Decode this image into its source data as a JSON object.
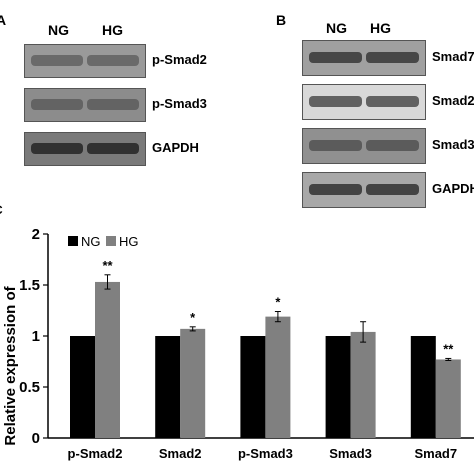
{
  "panelA": {
    "letter": "A",
    "header_ng": "NG",
    "header_hg": "HG",
    "blots": [
      {
        "label": "p-Smad2",
        "tone": "#9a9a9a",
        "band": "#5a5a5a"
      },
      {
        "label": "p-Smad3",
        "tone": "#8c8c8c",
        "band": "#555555"
      },
      {
        "label": "GAPDH",
        "tone": "#7a7a7a",
        "band": "#1a1a1a"
      }
    ]
  },
  "panelB": {
    "letter": "B",
    "header_ng": "NG",
    "header_hg": "HG",
    "blots": [
      {
        "label": "Smad7",
        "tone": "#a0a0a0",
        "band": "#2a2a2a"
      },
      {
        "label": "Smad2",
        "tone": "#d8d8d8",
        "band": "#3a3a3a"
      },
      {
        "label": "Smad3",
        "tone": "#909090",
        "band": "#4a4a4a"
      },
      {
        "label": "GAPDH",
        "tone": "#a8a8a8",
        "band": "#222222"
      }
    ]
  },
  "panelC": {
    "letter": "C"
  },
  "chart_data": {
    "type": "bar",
    "ylabel": "Relative expression of",
    "ylim": [
      0,
      2
    ],
    "yticks": [
      0,
      0.5,
      1,
      1.5,
      2
    ],
    "ytick_labels": [
      "0",
      "0.5",
      "1",
      "1.5",
      "2"
    ],
    "categories": [
      "p-Smad2",
      "Smad2",
      "p-Smad3",
      "Smad3",
      "Smad7"
    ],
    "series": [
      {
        "name": "NG",
        "color": "#000000",
        "values": [
          1,
          1,
          1,
          1,
          1
        ],
        "errors": [
          0,
          0,
          0,
          0,
          0
        ]
      },
      {
        "name": "HG",
        "color": "#808080",
        "values": [
          1.53,
          1.07,
          1.19,
          1.04,
          0.77
        ],
        "errors": [
          0.07,
          0.02,
          0.05,
          0.1,
          0.01
        ]
      }
    ],
    "significance": [
      "**",
      "*",
      "*",
      "",
      "**"
    ],
    "legend": "top-left"
  }
}
